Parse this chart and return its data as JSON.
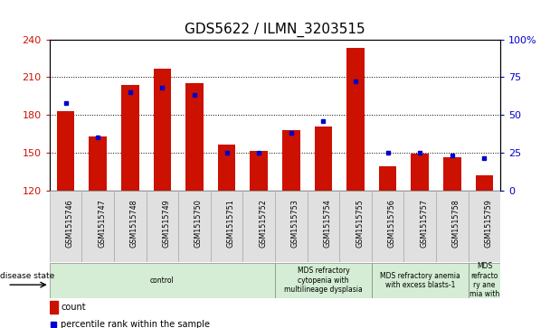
{
  "title": "GDS5622 / ILMN_3203515",
  "samples": [
    "GSM1515746",
    "GSM1515747",
    "GSM1515748",
    "GSM1515749",
    "GSM1515750",
    "GSM1515751",
    "GSM1515752",
    "GSM1515753",
    "GSM1515754",
    "GSM1515755",
    "GSM1515756",
    "GSM1515757",
    "GSM1515758",
    "GSM1515759"
  ],
  "counts": [
    183,
    163,
    204,
    217,
    205,
    156,
    151,
    168,
    171,
    233,
    139,
    149,
    146,
    132
  ],
  "percentiles": [
    58,
    35,
    65,
    68,
    63,
    25,
    25,
    38,
    46,
    72,
    25,
    25,
    23,
    21
  ],
  "ymin": 120,
  "ymax": 240,
  "yright_min": 0,
  "yright_max": 100,
  "yticks_left": [
    120,
    150,
    180,
    210,
    240
  ],
  "yticks_right": [
    0,
    25,
    50,
    75,
    100
  ],
  "disease_groups": [
    {
      "label": "control",
      "start": 0,
      "end": 7,
      "color": "#d4edd4"
    },
    {
      "label": "MDS refractory\ncytopenia with\nmultilineage dysplasia",
      "start": 7,
      "end": 10,
      "color": "#d4edd4"
    },
    {
      "label": "MDS refractory anemia\nwith excess blasts-1",
      "start": 10,
      "end": 13,
      "color": "#d4edd4"
    },
    {
      "label": "MDS\nrefracto\nry ane\nmia with",
      "start": 13,
      "end": 14,
      "color": "#d4edd4"
    }
  ],
  "bar_color": "#cc1100",
  "percentile_color": "#0000cc",
  "bar_width": 0.55,
  "grid_color": "#000000",
  "background_color": "#ffffff",
  "tick_label_color_left": "#cc1100",
  "tick_label_color_right": "#0000cc",
  "disease_state_label": "disease state",
  "legend_count_label": "count",
  "legend_percentile_label": "percentile rank within the sample"
}
